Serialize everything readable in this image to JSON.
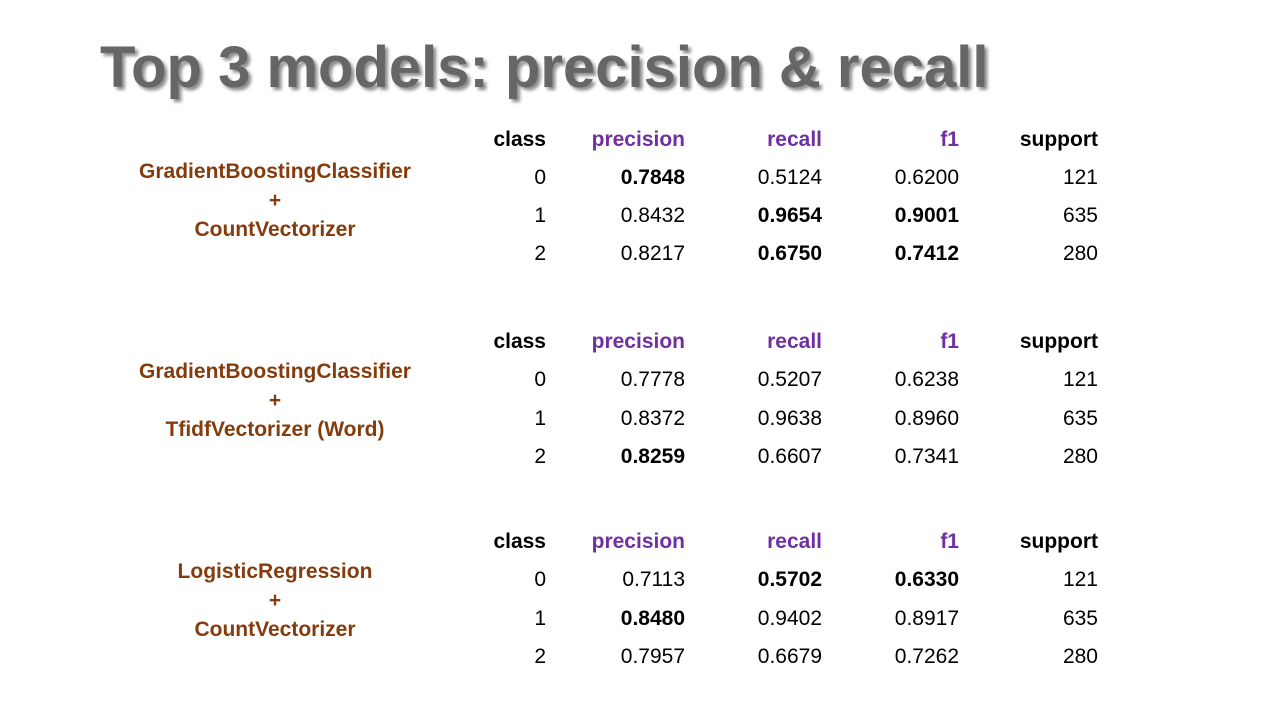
{
  "title": "Top 3 models: precision & recall",
  "colors": {
    "title": "#666666",
    "model_label": "#843c0c",
    "metric_header": "#7030a0",
    "text": "#000000"
  },
  "columns": [
    "class",
    "precision",
    "recall",
    "f1",
    "support"
  ],
  "models": [
    {
      "label": [
        "GradientBoostingClassifier",
        "+",
        "CountVectorizer"
      ],
      "rows": [
        {
          "class": "0",
          "precision": "0.7848",
          "recall": "0.5124",
          "f1": "0.6200",
          "support": "121",
          "bold": [
            "precision"
          ]
        },
        {
          "class": "1",
          "precision": "0.8432",
          "recall": "0.9654",
          "f1": "0.9001",
          "support": "635",
          "bold": [
            "recall",
            "f1"
          ]
        },
        {
          "class": "2",
          "precision": "0.8217",
          "recall": "0.6750",
          "f1": "0.7412",
          "support": "280",
          "bold": [
            "recall",
            "f1"
          ]
        }
      ]
    },
    {
      "label": [
        "GradientBoostingClassifier",
        "+",
        "TfidfVectorizer (Word)"
      ],
      "rows": [
        {
          "class": "0",
          "precision": "0.7778",
          "recall": "0.5207",
          "f1": "0.6238",
          "support": "121",
          "bold": []
        },
        {
          "class": "1",
          "precision": "0.8372",
          "recall": "0.9638",
          "f1": "0.8960",
          "support": "635",
          "bold": []
        },
        {
          "class": "2",
          "precision": "0.8259",
          "recall": "0.6607",
          "f1": "0.7341",
          "support": "280",
          "bold": [
            "precision"
          ]
        }
      ]
    },
    {
      "label": [
        "LogisticRegression",
        "+",
        "CountVectorizer"
      ],
      "rows": [
        {
          "class": "0",
          "precision": "0.7113",
          "recall": "0.5702",
          "f1": "0.6330",
          "support": "121",
          "bold": [
            "recall",
            "f1"
          ]
        },
        {
          "class": "1",
          "precision": "0.8480",
          "recall": "0.9402",
          "f1": "0.8917",
          "support": "635",
          "bold": [
            "precision"
          ]
        },
        {
          "class": "2",
          "precision": "0.7957",
          "recall": "0.6679",
          "f1": "0.7262",
          "support": "280",
          "bold": []
        }
      ]
    }
  ]
}
